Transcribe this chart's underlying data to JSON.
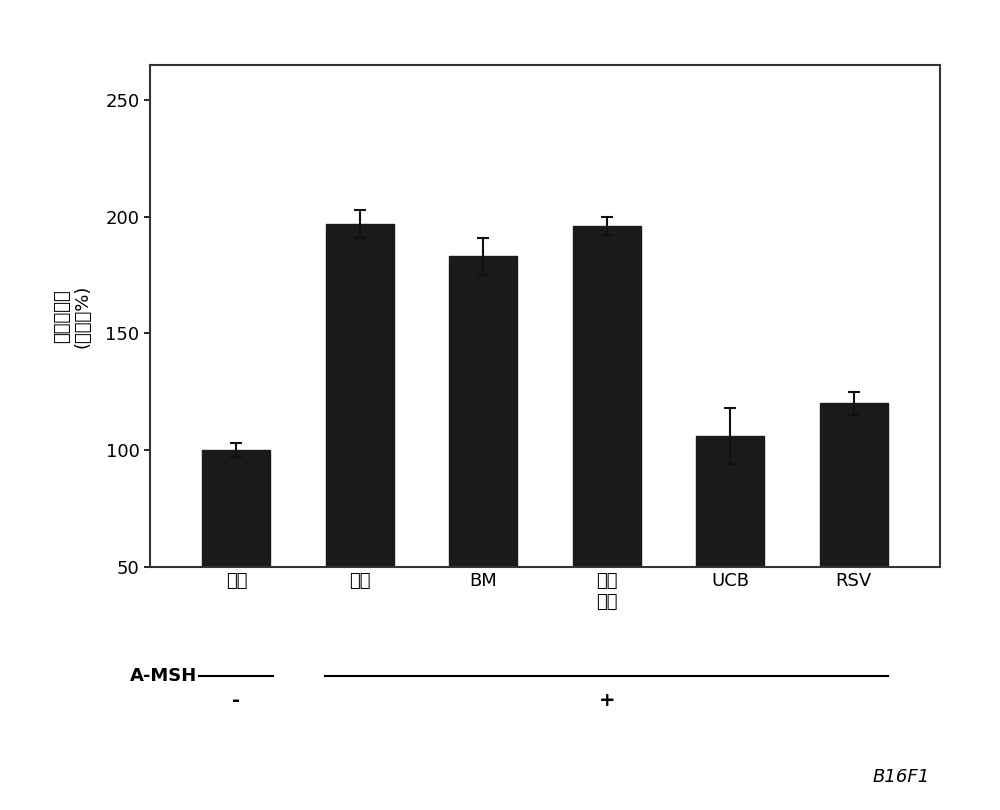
{
  "categories": [
    "对照",
    "对照",
    "BM",
    "脂肪\n细胞",
    "UCB",
    "RSV"
  ],
  "values": [
    100,
    197,
    183,
    196,
    106,
    120
  ],
  "errors": [
    3,
    6,
    8,
    4,
    12,
    5
  ],
  "bar_color": "#1a1a1a",
  "bar_width": 0.55,
  "ylim": [
    50,
    265
  ],
  "yticks": [
    50,
    100,
    150,
    200,
    250
  ],
  "ylabel_line1": "黑色素含量",
  "ylabel_line2": "(对照的%)",
  "amsh_label": "A-MSH",
  "amsh_minus": "-",
  "amsh_plus": "+",
  "figure_label": "B16F1",
  "bg_color": "#ffffff",
  "plot_bg_color": "#ffffff",
  "tick_fontsize": 13,
  "ylabel_fontsize": 13,
  "amsh_fontsize": 13
}
